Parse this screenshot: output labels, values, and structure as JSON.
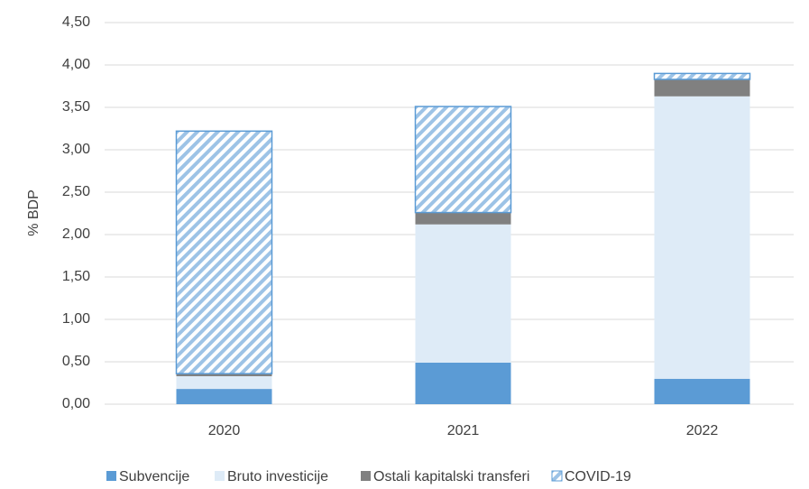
{
  "chart_data": {
    "type": "stacked_bar",
    "y_label": "% BDP",
    "categories": [
      "2020",
      "2021",
      "2022"
    ],
    "series": [
      {
        "name": "Subvencije",
        "color": "#5b9bd5",
        "values": [
          0.18,
          0.49,
          0.3
        ]
      },
      {
        "name": "Bruto investicije",
        "color": "#deebf7",
        "values": [
          0.15,
          1.63,
          3.33
        ]
      },
      {
        "name": "Ostali kapitalski transferi",
        "color": "#808080",
        "values": [
          0.03,
          0.14,
          0.2
        ]
      },
      {
        "name": "COVID-19",
        "color": "#5b9bd5",
        "pattern": "hatch",
        "values": [
          2.86,
          1.25,
          0.07
        ]
      }
    ],
    "ylim": [
      0,
      4.5
    ],
    "yticks": [
      {
        "value": 0,
        "label": "0,00"
      },
      {
        "value": 0.5,
        "label": "0,50"
      },
      {
        "value": 1,
        "label": "1,00"
      },
      {
        "value": 1.5,
        "label": "1,50"
      },
      {
        "value": 2,
        "label": "2,00"
      },
      {
        "value": 2.5,
        "label": "2,50"
      },
      {
        "value": 3,
        "label": "3,00"
      },
      {
        "value": 3.5,
        "label": "3,50"
      },
      {
        "value": 4,
        "label": "4,00"
      },
      {
        "value": 4.5,
        "label": "4,50"
      }
    ],
    "grid": true,
    "legend": "bottom"
  }
}
